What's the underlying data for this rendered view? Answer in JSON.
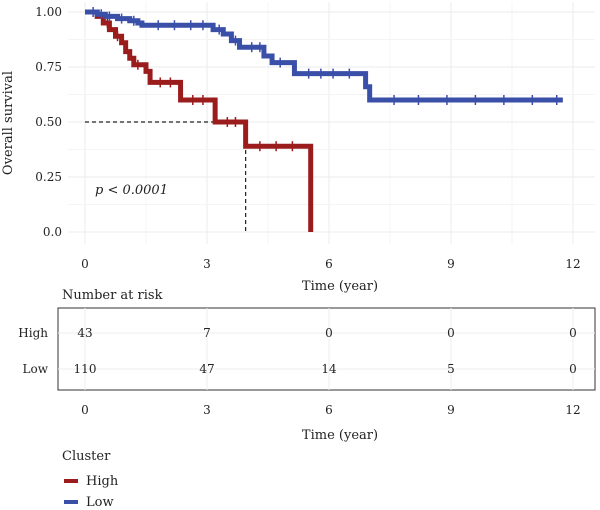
{
  "chart_data": {
    "type": "line",
    "subtype": "kaplan-meier",
    "title": "",
    "xlabel": "Time (year)",
    "ylabel": "Overall survival",
    "xlim": [
      0,
      12
    ],
    "ylim": [
      0,
      1
    ],
    "xticks": [
      "0",
      "3",
      "6",
      "9",
      "12"
    ],
    "yticks": [
      "0.0",
      "0.25",
      "0.50",
      "0.75",
      "1.00"
    ],
    "grid": true,
    "annotation": "p < 0.0001",
    "median_reference": {
      "survival": 0.5,
      "time": 3.95
    },
    "series": [
      {
        "name": "High",
        "color": "#9b1c1c",
        "steps": [
          [
            0,
            1.0
          ],
          [
            0.3,
            0.98
          ],
          [
            0.45,
            0.95
          ],
          [
            0.6,
            0.92
          ],
          [
            0.75,
            0.89
          ],
          [
            0.9,
            0.86
          ],
          [
            1.0,
            0.82
          ],
          [
            1.1,
            0.79
          ],
          [
            1.2,
            0.76
          ],
          [
            1.5,
            0.73
          ],
          [
            1.6,
            0.68
          ],
          [
            2.35,
            0.6
          ],
          [
            3.2,
            0.5
          ],
          [
            3.95,
            0.39
          ],
          [
            5.55,
            0.0
          ]
        ],
        "censor": [
          [
            0.55,
            0.95
          ],
          [
            0.8,
            0.89
          ],
          [
            1.3,
            0.76
          ],
          [
            1.85,
            0.68
          ],
          [
            2.1,
            0.68
          ],
          [
            2.65,
            0.6
          ],
          [
            2.9,
            0.6
          ],
          [
            3.5,
            0.5
          ],
          [
            3.7,
            0.5
          ],
          [
            4.3,
            0.39
          ],
          [
            4.7,
            0.39
          ],
          [
            5.1,
            0.39
          ]
        ]
      },
      {
        "name": "Low",
        "color": "#3a4fa8",
        "steps": [
          [
            0,
            1.0
          ],
          [
            0.3,
            0.99
          ],
          [
            0.5,
            0.98
          ],
          [
            0.8,
            0.97
          ],
          [
            1.1,
            0.96
          ],
          [
            1.3,
            0.95
          ],
          [
            1.4,
            0.94
          ],
          [
            3.15,
            0.92
          ],
          [
            3.4,
            0.9
          ],
          [
            3.6,
            0.87
          ],
          [
            3.8,
            0.84
          ],
          [
            4.4,
            0.8
          ],
          [
            4.6,
            0.77
          ],
          [
            5.15,
            0.72
          ],
          [
            6.9,
            0.66
          ],
          [
            7.0,
            0.6
          ],
          [
            11.75,
            0.6
          ]
        ],
        "censor": [
          [
            0.2,
            1.0
          ],
          [
            0.4,
            0.99
          ],
          [
            0.6,
            0.98
          ],
          [
            0.9,
            0.97
          ],
          [
            1.2,
            0.96
          ],
          [
            1.8,
            0.94
          ],
          [
            2.2,
            0.94
          ],
          [
            2.6,
            0.94
          ],
          [
            2.9,
            0.94
          ],
          [
            3.3,
            0.92
          ],
          [
            3.7,
            0.87
          ],
          [
            4.1,
            0.84
          ],
          [
            4.3,
            0.84
          ],
          [
            4.8,
            0.77
          ],
          [
            5.5,
            0.72
          ],
          [
            5.8,
            0.72
          ],
          [
            6.1,
            0.72
          ],
          [
            6.5,
            0.72
          ],
          [
            7.6,
            0.6
          ],
          [
            8.2,
            0.6
          ],
          [
            8.9,
            0.6
          ],
          [
            9.6,
            0.6
          ],
          [
            10.3,
            0.6
          ],
          [
            11.0,
            0.6
          ],
          [
            11.6,
            0.6
          ]
        ]
      }
    ]
  },
  "risk_table": {
    "title": "Number at risk",
    "xlabel": "Time (year)",
    "times": [
      "0",
      "3",
      "6",
      "9",
      "12"
    ],
    "rows": [
      {
        "label": "High",
        "counts": [
          "43",
          "7",
          "0",
          "0",
          "0"
        ]
      },
      {
        "label": "Low",
        "counts": [
          "110",
          "47",
          "14",
          "5",
          "0"
        ]
      }
    ]
  },
  "legend": {
    "title": "Cluster",
    "items": [
      {
        "label": "High",
        "color": "#9b1c1c"
      },
      {
        "label": "Low",
        "color": "#3a4fa8"
      }
    ]
  }
}
